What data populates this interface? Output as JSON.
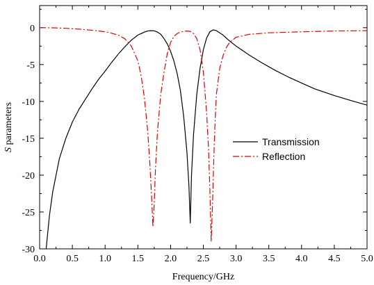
{
  "chart_data": {
    "type": "line",
    "title": "",
    "xlabel": "Frequency/GHz",
    "ylabel_italic": "S",
    "ylabel_rest": " parameters",
    "xlim": [
      0,
      5
    ],
    "ylim": [
      -30,
      3
    ],
    "xticks": [
      0.0,
      0.5,
      1.0,
      1.5,
      2.0,
      2.5,
      3.0,
      3.5,
      4.0,
      4.5,
      5.0
    ],
    "xtick_labels": [
      "0.0",
      "0.5",
      "1.0",
      "1.5",
      "2.0",
      "2.5",
      "3.0",
      "3.5",
      "4.0",
      "4.5",
      "5.0"
    ],
    "yticks": [
      0,
      -5,
      -10,
      -15,
      -20,
      -25,
      -30
    ],
    "ytick_labels": [
      "0",
      "-5",
      "-10",
      "-15",
      "-20",
      "-25",
      "-30"
    ],
    "grid": false,
    "legend_position": "center-right",
    "series": [
      {
        "name": "Transmission",
        "color": "#000000",
        "style": "solid",
        "x": [
          0.1,
          0.15,
          0.2,
          0.3,
          0.4,
          0.5,
          0.6,
          0.7,
          0.8,
          0.9,
          1.0,
          1.1,
          1.2,
          1.3,
          1.4,
          1.5,
          1.6,
          1.65,
          1.7,
          1.75,
          1.8,
          1.85,
          1.9,
          1.95,
          2.0,
          2.05,
          2.1,
          2.15,
          2.2,
          2.25,
          2.28,
          2.3,
          2.32,
          2.35,
          2.4,
          2.45,
          2.5,
          2.55,
          2.6,
          2.65,
          2.7,
          2.8,
          2.9,
          3.0,
          3.2,
          3.4,
          3.6,
          3.8,
          4.0,
          4.2,
          4.5,
          4.8,
          5.0
        ],
        "y": [
          -30.0,
          -25.5,
          -22.3,
          -17.8,
          -15.0,
          -12.8,
          -11.1,
          -9.7,
          -8.3,
          -7.0,
          -5.9,
          -4.7,
          -3.6,
          -2.6,
          -1.7,
          -1.0,
          -0.6,
          -0.45,
          -0.4,
          -0.42,
          -0.6,
          -0.9,
          -1.5,
          -2.2,
          -3.2,
          -4.5,
          -6.2,
          -8.5,
          -12.0,
          -17.0,
          -21.5,
          -26.5,
          -20.0,
          -14.5,
          -9.0,
          -5.5,
          -3.0,
          -1.4,
          -0.55,
          -0.3,
          -0.4,
          -1.0,
          -1.8,
          -2.5,
          -3.7,
          -4.8,
          -5.8,
          -6.7,
          -7.5,
          -8.3,
          -9.2,
          -10.0,
          -10.5
        ]
      },
      {
        "name": "Reflection",
        "color": "#e00000",
        "style": "dashdot",
        "x": [
          0.0,
          0.2,
          0.4,
          0.6,
          0.8,
          1.0,
          1.1,
          1.2,
          1.3,
          1.4,
          1.5,
          1.55,
          1.6,
          1.65,
          1.68,
          1.71,
          1.73,
          1.75,
          1.77,
          1.8,
          1.85,
          1.9,
          1.95,
          2.0,
          2.05,
          2.1,
          2.15,
          2.2,
          2.25,
          2.3,
          2.35,
          2.4,
          2.45,
          2.5,
          2.55,
          2.58,
          2.6,
          2.62,
          2.64,
          2.66,
          2.68,
          2.7,
          2.75,
          2.8,
          2.85,
          2.9,
          3.0,
          3.2,
          3.5,
          4.0,
          4.5,
          5.0
        ],
        "y": [
          0.0,
          -0.02,
          -0.08,
          -0.2,
          -0.35,
          -0.55,
          -0.75,
          -1.0,
          -1.5,
          -2.5,
          -4.5,
          -6.5,
          -9.5,
          -14.0,
          -18.0,
          -23.0,
          -27.0,
          -24.0,
          -19.0,
          -14.0,
          -9.0,
          -6.0,
          -3.5,
          -2.0,
          -1.2,
          -0.8,
          -0.6,
          -0.5,
          -0.45,
          -0.5,
          -0.8,
          -1.5,
          -3.0,
          -6.0,
          -11.5,
          -16.5,
          -22.0,
          -29.0,
          -24.0,
          -17.5,
          -12.5,
          -9.0,
          -5.5,
          -3.8,
          -2.7,
          -2.0,
          -1.3,
          -0.9,
          -0.7,
          -0.55,
          -0.45,
          -0.4
        ]
      }
    ]
  }
}
